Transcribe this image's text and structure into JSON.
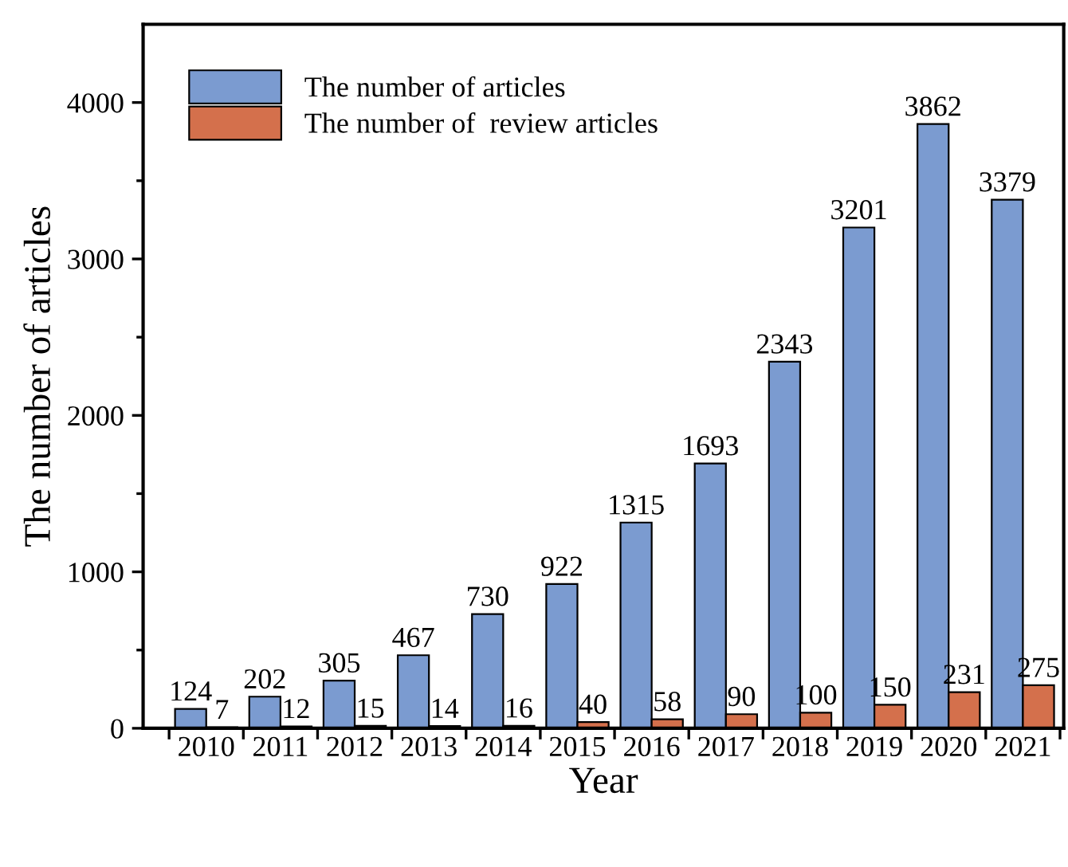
{
  "chart_data": {
    "type": "bar",
    "xlabel": "Year",
    "ylabel": "The number of articles",
    "categories": [
      "2010",
      "2011",
      "2012",
      "2013",
      "2014",
      "2015",
      "2016",
      "2017",
      "2018",
      "2019",
      "2020",
      "2021"
    ],
    "series": [
      {
        "name": "The number of articles",
        "color": "#7b9bd0",
        "values": [
          124,
          202,
          305,
          467,
          730,
          922,
          1315,
          1693,
          2343,
          3201,
          3862,
          3379
        ]
      },
      {
        "name": "The number of  review articles",
        "color": "#d4704c",
        "values": [
          7,
          12,
          15,
          14,
          16,
          40,
          58,
          90,
          100,
          150,
          231,
          275
        ]
      }
    ],
    "ylim": [
      0,
      4500
    ],
    "yticks": [
      0,
      {
        "value": 500,
        "label": null
      },
      1000,
      {
        "value": 1500,
        "label": null
      },
      2000,
      {
        "value": 2500,
        "label": null
      },
      3000,
      {
        "value": 3500,
        "label": null
      },
      4000
    ],
    "data_labels": true,
    "grid": false,
    "legend": "top left"
  }
}
